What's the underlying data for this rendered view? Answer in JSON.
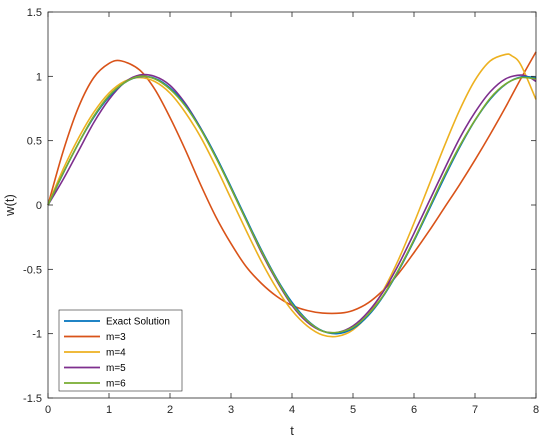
{
  "chart_data": {
    "type": "line",
    "title": "",
    "xlabel": "t",
    "ylabel": "w(t)",
    "xlim": [
      0,
      8
    ],
    "ylim": [
      -1.5,
      1.5
    ],
    "xticks": [
      "0",
      "1",
      "2",
      "3",
      "4",
      "5",
      "6",
      "7",
      "8"
    ],
    "yticks": [
      "-1.5",
      "-1",
      "-0.5",
      "0",
      "0.5",
      "1",
      "1.5"
    ],
    "grid": false,
    "legend_position": "bottom-left",
    "series": [
      {
        "name": "Exact Solution",
        "color": "#0072BD",
        "x": [
          0,
          0.25,
          0.5,
          0.75,
          1,
          1.25,
          1.5,
          1.75,
          2,
          2.25,
          2.5,
          2.75,
          3,
          3.25,
          3.5,
          3.75,
          4,
          4.25,
          4.5,
          4.75,
          5,
          5.25,
          5.5,
          5.75,
          6,
          6.25,
          6.5,
          6.75,
          7,
          7.25,
          7.5,
          7.75,
          8
        ],
        "values": [
          0,
          0.247,
          0.479,
          0.682,
          0.841,
          0.949,
          0.997,
          0.984,
          0.909,
          0.778,
          0.598,
          0.382,
          0.141,
          -0.108,
          -0.351,
          -0.572,
          -0.757,
          -0.895,
          -0.978,
          -0.999,
          -0.959,
          -0.859,
          -0.706,
          -0.508,
          -0.279,
          -0.033,
          0.215,
          0.45,
          0.657,
          0.823,
          0.938,
          0.995,
          0.989
        ]
      },
      {
        "name": "m=3",
        "color": "#D95319",
        "x": [
          0,
          0.25,
          0.5,
          0.75,
          1,
          1.2,
          1.5,
          1.75,
          2,
          2.25,
          2.5,
          2.75,
          3,
          3.25,
          3.5,
          3.75,
          4,
          4.25,
          4.5,
          4.8,
          5,
          5.25,
          5.5,
          5.75,
          6,
          6.25,
          6.5,
          6.75,
          7,
          7.25,
          7.5,
          7.75,
          8
        ],
        "values": [
          0,
          0.42,
          0.76,
          0.99,
          1.1,
          1.12,
          1.05,
          0.9,
          0.68,
          0.43,
          0.16,
          -0.09,
          -0.3,
          -0.48,
          -0.61,
          -0.71,
          -0.78,
          -0.82,
          -0.84,
          -0.84,
          -0.82,
          -0.76,
          -0.66,
          -0.53,
          -0.37,
          -0.2,
          -0.02,
          0.16,
          0.35,
          0.55,
          0.76,
          0.98,
          1.19
        ]
      },
      {
        "name": "m=4",
        "color": "#EDB120",
        "x": [
          0,
          0.25,
          0.5,
          0.75,
          1,
          1.25,
          1.5,
          1.75,
          2,
          2.25,
          2.5,
          2.75,
          3,
          3.25,
          3.5,
          3.75,
          4,
          4.25,
          4.5,
          4.75,
          5,
          5.25,
          5.5,
          5.75,
          6,
          6.25,
          6.5,
          6.75,
          7,
          7.25,
          7.5,
          7.6,
          7.75,
          8
        ],
        "values": [
          0,
          0.28,
          0.52,
          0.72,
          0.87,
          0.96,
          0.99,
          0.96,
          0.87,
          0.72,
          0.53,
          0.3,
          0.05,
          -0.2,
          -0.44,
          -0.65,
          -0.82,
          -0.94,
          -1.01,
          -1.02,
          -0.97,
          -0.85,
          -0.66,
          -0.42,
          -0.14,
          0.16,
          0.46,
          0.74,
          0.97,
          1.12,
          1.17,
          1.16,
          1.09,
          0.82
        ]
      },
      {
        "name": "m=5",
        "color": "#7E2F8E",
        "x": [
          0,
          0.25,
          0.5,
          0.75,
          1,
          1.25,
          1.5,
          1.75,
          2,
          2.25,
          2.5,
          2.75,
          3,
          3.25,
          3.5,
          3.75,
          4,
          4.25,
          4.5,
          4.75,
          5,
          5.25,
          5.5,
          5.75,
          6,
          6.25,
          6.5,
          6.75,
          7,
          7.25,
          7.5,
          7.75,
          7.9,
          8
        ],
        "values": [
          0,
          0.2,
          0.42,
          0.64,
          0.82,
          0.95,
          1.01,
          1.0,
          0.93,
          0.79,
          0.6,
          0.38,
          0.13,
          -0.12,
          -0.37,
          -0.59,
          -0.78,
          -0.91,
          -0.98,
          -0.99,
          -0.94,
          -0.83,
          -0.67,
          -0.46,
          -0.22,
          0.03,
          0.28,
          0.52,
          0.72,
          0.88,
          0.98,
          1.01,
          0.99,
          0.96
        ]
      },
      {
        "name": "m=6",
        "color": "#77AC30",
        "x": [
          0,
          0.25,
          0.5,
          0.75,
          1,
          1.25,
          1.5,
          1.75,
          2,
          2.25,
          2.5,
          2.75,
          3,
          3.25,
          3.5,
          3.75,
          4,
          4.25,
          4.5,
          4.75,
          5,
          5.25,
          5.5,
          5.75,
          6,
          6.25,
          6.5,
          6.75,
          7,
          7.25,
          7.5,
          7.75,
          8
        ],
        "values": [
          0,
          0.25,
          0.48,
          0.69,
          0.85,
          0.95,
          1.0,
          0.98,
          0.9,
          0.77,
          0.59,
          0.37,
          0.13,
          -0.12,
          -0.36,
          -0.58,
          -0.77,
          -0.9,
          -0.98,
          -0.99,
          -0.95,
          -0.85,
          -0.7,
          -0.5,
          -0.27,
          -0.02,
          0.23,
          0.46,
          0.66,
          0.83,
          0.94,
          0.99,
          0.98
        ]
      }
    ]
  }
}
